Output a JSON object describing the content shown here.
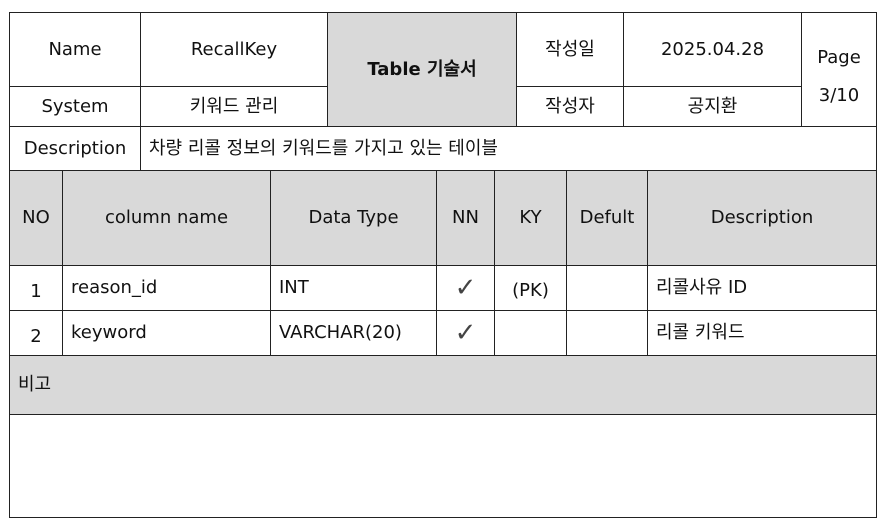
{
  "header": {
    "name_label": "Name",
    "name_value": "RecallKey",
    "doc_title": "Table 기술서",
    "created_date_label": "작성일",
    "created_date_value": "2025.04.28",
    "page_label": "Page",
    "page_value": "3/10",
    "system_label": "System",
    "system_value": "키워드 관리",
    "author_label": "작성자",
    "author_value": "공지환",
    "description_label": "Description",
    "description_value": "차량 리콜 정보의 키워드를 가지고 있는 테이블"
  },
  "columns": {
    "no": "NO",
    "column_name": "column name",
    "data_type": "Data Type",
    "nn": "NN",
    "ky": "KY",
    "default": "Defult",
    "description": "Description"
  },
  "rows": [
    {
      "no": "1",
      "column_name": "reason_id",
      "data_type": "INT",
      "nn": "✓",
      "ky": "(PK)",
      "default": "",
      "description": "리콜사유 ID"
    },
    {
      "no": "2",
      "column_name": "keyword",
      "data_type": "VARCHAR(20)",
      "nn": "✓",
      "ky": "",
      "default": "",
      "description": "리콜 키워드"
    }
  ],
  "remarks": {
    "label": "비고",
    "content": ""
  }
}
